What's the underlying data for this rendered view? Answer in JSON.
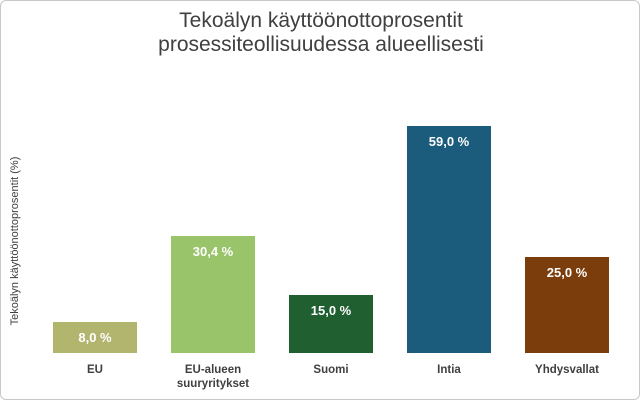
{
  "chart_data": {
    "type": "bar",
    "title": "Tekoälyn käyttöönottoprosentit prosessiteollisuudessa alueellisesti",
    "y_label": "Tekoälyn käyttöönottoprosentit (%)",
    "categories": [
      "EU",
      "EU-alueen suuryritykset",
      "Suomi",
      "Intia",
      "Yhdysvallat"
    ],
    "values": [
      8.0,
      30.4,
      15.0,
      59.0,
      25.0
    ],
    "value_labels": [
      "8,0 %",
      "30,4 %",
      "15,0 %",
      "59,0 %",
      "25,0 %"
    ],
    "colors": [
      "#b1b56e",
      "#9ac46a",
      "#1f5f30",
      "#1b5b7c",
      "#7b3d0b"
    ]
  }
}
